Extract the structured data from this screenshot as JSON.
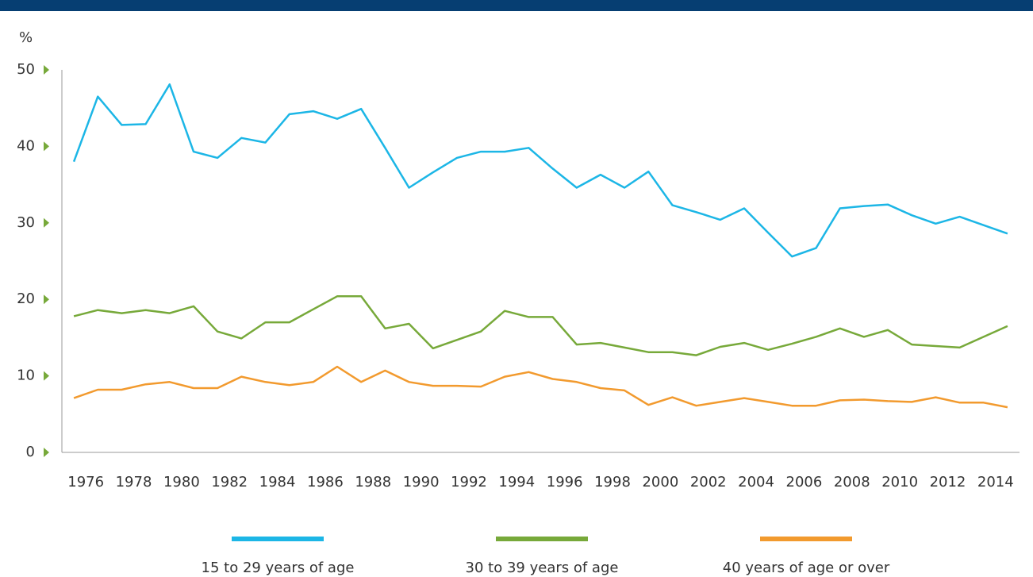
{
  "chart_data": {
    "type": "line",
    "y_label": "%",
    "categories": [
      null,
      "1976",
      null,
      "1978",
      null,
      "1980",
      null,
      "1982",
      null,
      "1984",
      null,
      "1986",
      null,
      "1988",
      null,
      "1990",
      null,
      "1992",
      null,
      "1994",
      null,
      "1996",
      null,
      "1998",
      null,
      "2000",
      null,
      "2002",
      null,
      "2004",
      null,
      "2006",
      null,
      "2008",
      null,
      "2010",
      null,
      "2012",
      null,
      "2014"
    ],
    "series": [
      {
        "name": "15 to 29 years of age",
        "color": "#1cb6e6",
        "values": [
          38.0,
          46.5,
          42.8,
          42.9,
          48.1,
          39.3,
          38.5,
          41.1,
          40.5,
          44.2,
          44.6,
          43.6,
          44.9,
          39.8,
          34.6,
          36.6,
          38.5,
          39.3,
          39.3,
          39.8,
          37.1,
          34.6,
          36.3,
          34.6,
          36.7,
          32.3,
          31.4,
          30.4,
          31.9,
          28.7,
          25.6,
          26.7,
          31.9,
          32.2,
          32.4,
          31.0,
          29.9,
          30.8,
          29.7,
          28.6
        ]
      },
      {
        "name": "30 to 39 years of age",
        "color": "#77a93a",
        "values": [
          17.8,
          18.6,
          18.2,
          18.6,
          18.2,
          19.1,
          15.8,
          14.9,
          17.0,
          17.0,
          18.7,
          20.4,
          20.4,
          16.2,
          16.8,
          13.6,
          14.7,
          15.8,
          18.5,
          17.7,
          17.7,
          14.1,
          14.3,
          13.7,
          13.1,
          13.1,
          12.7,
          13.8,
          14.3,
          13.4,
          14.2,
          15.1,
          16.2,
          15.1,
          16.0,
          14.1,
          13.9,
          13.7,
          15.1,
          16.5
        ]
      },
      {
        "name": "40 years of age or over",
        "color": "#f29a2e",
        "values": [
          7.1,
          8.2,
          8.2,
          8.9,
          9.2,
          8.4,
          8.4,
          9.9,
          9.2,
          8.8,
          9.2,
          11.2,
          9.2,
          10.7,
          9.2,
          8.7,
          8.7,
          8.6,
          9.9,
          10.5,
          9.6,
          9.2,
          8.4,
          8.1,
          6.2,
          7.2,
          6.1,
          6.6,
          7.1,
          6.6,
          6.1,
          6.1,
          6.8,
          6.9,
          6.7,
          6.6,
          7.2,
          6.5,
          6.5,
          5.9
        ]
      }
    ],
    "ylim": [
      0,
      50
    ],
    "yticks": [
      0,
      10,
      20,
      30,
      40,
      50
    ],
    "tick_marker_color": "#77a93a"
  }
}
